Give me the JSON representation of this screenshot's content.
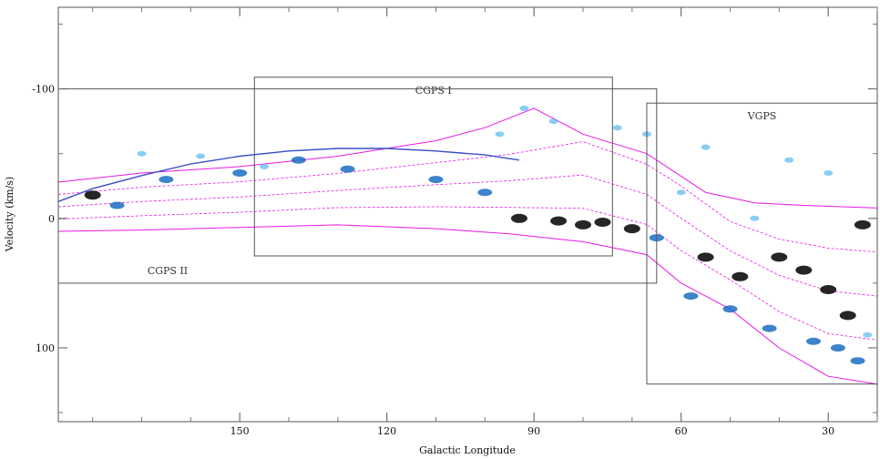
{
  "chart_data": {
    "type": "scatter",
    "xlabel": "Galactic Longitude",
    "ylabel": "Velocity (km/s)",
    "xlim": [
      187,
      20
    ],
    "ylim": [
      -163,
      157
    ],
    "x_ticks": [
      {
        "value": 150,
        "label": "150"
      },
      {
        "value": 120,
        "label": "120"
      },
      {
        "value": 90,
        "label": "90"
      },
      {
        "value": 60,
        "label": "60"
      },
      {
        "value": 30,
        "label": "30"
      }
    ],
    "y_ticks": [
      {
        "value": -100,
        "label": "-100"
      },
      {
        "value": 0,
        "label": "0"
      },
      {
        "value": 100,
        "label": "100"
      }
    ],
    "regions": [
      {
        "name": "CGPS I",
        "l_min": 74,
        "l_max": 147,
        "v_min": -109,
        "v_max": 29
      },
      {
        "name": "CGPS II",
        "l_min": 65,
        "l_max": 187,
        "v_min": -100,
        "v_max": 50
      },
      {
        "name": "VGPS",
        "l_min": 20,
        "l_max": 67,
        "v_min": -89,
        "v_max": 128
      }
    ],
    "rotation_curve": {
      "x": [
        187,
        180,
        170,
        160,
        150,
        140,
        130,
        120,
        110,
        100,
        93
      ],
      "y": [
        -13,
        -23,
        -33,
        -42,
        -48,
        -52,
        -54,
        -54,
        -52,
        -49,
        -45
      ],
      "color": "#3a4fc8"
    },
    "hi_emission": {
      "color_dark": "#000000",
      "color_mid": "#1b6fc2",
      "color_light": "#55b8f0",
      "points": [
        {
          "x": 93,
          "y": 0,
          "level": "dark"
        },
        {
          "x": 85,
          "y": 2,
          "level": "dark"
        },
        {
          "x": 80,
          "y": 5,
          "level": "dark"
        },
        {
          "x": 76,
          "y": 3,
          "level": "dark"
        },
        {
          "x": 70,
          "y": 8,
          "level": "dark"
        },
        {
          "x": 55,
          "y": 30,
          "level": "dark"
        },
        {
          "x": 48,
          "y": 45,
          "level": "dark"
        },
        {
          "x": 40,
          "y": 30,
          "level": "dark"
        },
        {
          "x": 35,
          "y": 40,
          "level": "dark"
        },
        {
          "x": 30,
          "y": 55,
          "level": "dark"
        },
        {
          "x": 26,
          "y": 75,
          "level": "dark"
        },
        {
          "x": 23,
          "y": 5,
          "level": "dark"
        },
        {
          "x": 180,
          "y": -18,
          "level": "dark"
        },
        {
          "x": 175,
          "y": -10,
          "level": "mid"
        },
        {
          "x": 165,
          "y": -30,
          "level": "mid"
        },
        {
          "x": 150,
          "y": -35,
          "level": "mid"
        },
        {
          "x": 138,
          "y": -45,
          "level": "mid"
        },
        {
          "x": 128,
          "y": -38,
          "level": "mid"
        },
        {
          "x": 110,
          "y": -30,
          "level": "mid"
        },
        {
          "x": 100,
          "y": -20,
          "level": "mid"
        },
        {
          "x": 65,
          "y": 15,
          "level": "mid"
        },
        {
          "x": 58,
          "y": 60,
          "level": "mid"
        },
        {
          "x": 50,
          "y": 70,
          "level": "mid"
        },
        {
          "x": 42,
          "y": 85,
          "level": "mid"
        },
        {
          "x": 33,
          "y": 95,
          "level": "mid"
        },
        {
          "x": 28,
          "y": 100,
          "level": "mid"
        },
        {
          "x": 24,
          "y": 110,
          "level": "mid"
        },
        {
          "x": 92,
          "y": -85,
          "level": "light"
        },
        {
          "x": 97,
          "y": -65,
          "level": "light"
        },
        {
          "x": 86,
          "y": -75,
          "level": "light"
        },
        {
          "x": 73,
          "y": -70,
          "level": "light"
        },
        {
          "x": 67,
          "y": -65,
          "level": "light"
        },
        {
          "x": 55,
          "y": -55,
          "level": "light"
        },
        {
          "x": 38,
          "y": -45,
          "level": "light"
        },
        {
          "x": 30,
          "y": -35,
          "level": "light"
        },
        {
          "x": 170,
          "y": -50,
          "level": "light"
        },
        {
          "x": 158,
          "y": -48,
          "level": "light"
        },
        {
          "x": 145,
          "y": -40,
          "level": "light"
        },
        {
          "x": 60,
          "y": -20,
          "level": "light"
        },
        {
          "x": 45,
          "y": 0,
          "level": "light"
        },
        {
          "x": 22,
          "y": 90,
          "level": "light"
        }
      ]
    },
    "co_contours": {
      "color": "#e619e6",
      "lower_boundary": {
        "x": [
          187,
          170,
          150,
          130,
          110,
          95,
          80,
          67,
          60,
          50,
          40,
          30,
          20
        ],
        "y": [
          10,
          9,
          7,
          5,
          8,
          12,
          18,
          28,
          50,
          70,
          100,
          122,
          128
        ]
      },
      "upper_boundary": {
        "x": [
          187,
          170,
          150,
          130,
          110,
          100,
          90,
          80,
          67,
          55,
          45,
          35,
          20
        ],
        "y": [
          -28,
          -35,
          -40,
          -48,
          -60,
          -70,
          -85,
          -65,
          -50,
          -20,
          -12,
          -10,
          -8
        ]
      }
    }
  }
}
